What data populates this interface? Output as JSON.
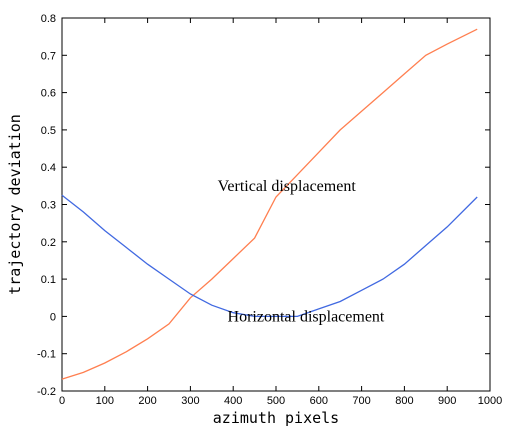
{
  "chart_data": {
    "type": "line",
    "title": "",
    "xlabel": "azimuth pixels",
    "ylabel": "trajectory deviation",
    "xlim": [
      0,
      1000
    ],
    "ylim": [
      -0.2,
      0.8
    ],
    "xticks": [
      0,
      100,
      200,
      300,
      400,
      500,
      600,
      700,
      800,
      900,
      1000
    ],
    "yticks": [
      -0.2,
      -0.1,
      0,
      0.1,
      0.2,
      0.3,
      0.4,
      0.5,
      0.6,
      0.7,
      0.8
    ],
    "xtick_labels": [
      "0",
      "100",
      "200",
      "300",
      "400",
      "500",
      "600",
      "700",
      "800",
      "900",
      "1000"
    ],
    "ytick_labels": [
      "-0.2",
      "-0.1",
      "0",
      "0.1",
      "0.2",
      "0.3",
      "0.4",
      "0.5",
      "0.6",
      "0.7",
      "0.8"
    ],
    "grid": false,
    "series": [
      {
        "name": "Vertical displacement",
        "color": "#ff7f50",
        "x": [
          0,
          50,
          100,
          150,
          200,
          250,
          300,
          350,
          400,
          450,
          500,
          550,
          600,
          650,
          700,
          750,
          800,
          850,
          900,
          970
        ],
        "y": [
          -0.168,
          -0.15,
          -0.125,
          -0.095,
          -0.06,
          -0.02,
          0.05,
          0.1,
          0.155,
          0.21,
          0.32,
          0.38,
          0.44,
          0.5,
          0.55,
          0.6,
          0.65,
          0.7,
          0.73,
          0.77
        ]
      },
      {
        "name": "Horizontal displacement",
        "color": "#4169e1",
        "x": [
          0,
          50,
          100,
          150,
          200,
          250,
          300,
          350,
          400,
          450,
          500,
          550,
          600,
          650,
          700,
          750,
          800,
          850,
          900,
          970
        ],
        "y": [
          0.325,
          0.28,
          0.23,
          0.185,
          0.14,
          0.1,
          0.06,
          0.03,
          0.01,
          0.0,
          0.0,
          0.0,
          0.02,
          0.04,
          0.07,
          0.1,
          0.14,
          0.19,
          0.24,
          0.32
        ]
      }
    ],
    "annotations": [
      {
        "text": "Vertical displacement",
        "x": 525,
        "y": 0.35
      },
      {
        "text": "Horizontal displacement",
        "x": 570,
        "y": 0.0
      }
    ]
  }
}
